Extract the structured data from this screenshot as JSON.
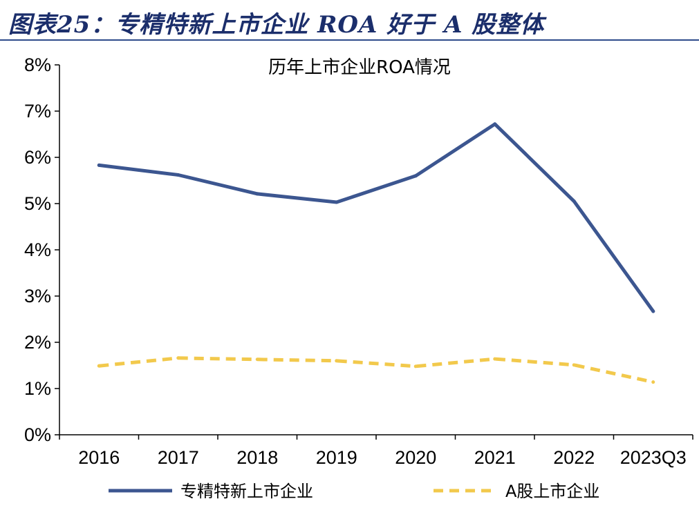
{
  "figure": {
    "title": "图表25：专精特新上市企业 ROA 好于 A 股整体"
  },
  "chart_data": {
    "type": "line",
    "title": "历年上市企业ROA情况",
    "categories": [
      "2016",
      "2017",
      "2018",
      "2019",
      "2020",
      "2021",
      "2022",
      "2023Q3"
    ],
    "series": [
      {
        "name": "专精特新上市企业",
        "values": [
          5.83,
          5.62,
          5.21,
          5.03,
          5.6,
          6.72,
          5.05,
          2.67
        ],
        "color": "#3c5690",
        "style": "solid"
      },
      {
        "name": "A股上市企业",
        "values": [
          1.49,
          1.66,
          1.63,
          1.6,
          1.48,
          1.64,
          1.51,
          1.14
        ],
        "color": "#f2c94c",
        "style": "dashed"
      }
    ],
    "ylim": [
      0,
      8
    ],
    "yticks": [
      "0%",
      "1%",
      "2%",
      "3%",
      "4%",
      "5%",
      "6%",
      "7%",
      "8%"
    ],
    "xlabel": "",
    "ylabel": "",
    "grid": false,
    "legend_position": "bottom"
  }
}
